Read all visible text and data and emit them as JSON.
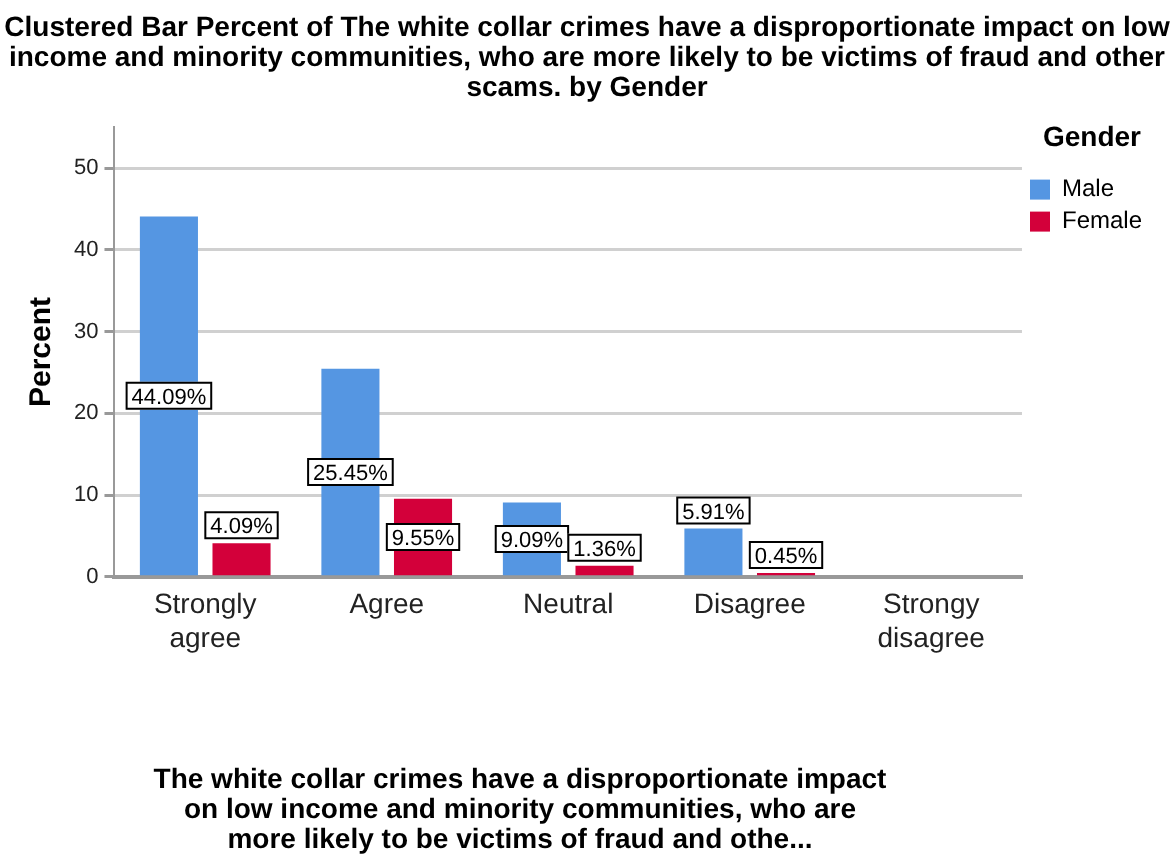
{
  "chart_data": {
    "type": "bar",
    "title": "Clustered Bar Percent of The white collar crimes have a disproportionate impact on low income and minority communities, who are more likely to be victims of fraud and other scams. by Gender",
    "xlabel": "The white collar crimes have a disproportionate impact on low income and minority communities, who are more likely to be victims of fraud and othe...",
    "ylabel": "Percent",
    "legend_title": "Gender",
    "categories": [
      "Strongly agree",
      "Agree",
      "Neutral",
      "Disagree",
      "Strongy disagree"
    ],
    "series": [
      {
        "name": "Male",
        "color": "#5596e2",
        "values": [
          44.09,
          25.45,
          9.09,
          5.91,
          null
        ],
        "value_labels": [
          "44.09%",
          "25.45%",
          "9.09%",
          "5.91%",
          null
        ]
      },
      {
        "name": "Female",
        "color": "#d3003a",
        "values": [
          4.09,
          9.55,
          1.36,
          0.45,
          null
        ],
        "value_labels": [
          "4.09%",
          "9.55%",
          "1.36%",
          "0.45%",
          null
        ]
      }
    ],
    "ylim": [
      0,
      55
    ],
    "yticks": [
      0,
      10,
      20,
      30,
      40,
      50
    ],
    "grid": "y",
    "legend": "top right"
  }
}
